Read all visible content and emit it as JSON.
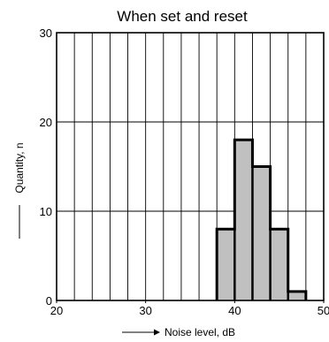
{
  "chart_data": {
    "type": "bar",
    "title": "When set and reset",
    "xlabel": "Noise level, dB",
    "ylabel": "Quantity, n",
    "xlim": [
      20,
      50
    ],
    "ylim": [
      0,
      30
    ],
    "xticks": [
      20,
      30,
      40,
      50
    ],
    "yticks": [
      0,
      10,
      20,
      30
    ],
    "x_minor_step": 2,
    "grid": true,
    "bins": [
      {
        "x0": 38,
        "x1": 40,
        "count": 8
      },
      {
        "x0": 40,
        "x1": 42,
        "count": 18
      },
      {
        "x0": 42,
        "x1": 44,
        "count": 15
      },
      {
        "x0": 44,
        "x1": 46,
        "count": 8
      },
      {
        "x0": 46,
        "x1": 48,
        "count": 1
      }
    ],
    "colors": {
      "bar_fill": "#c0c0c0",
      "bar_stroke": "#000000",
      "grid": "#000000"
    }
  }
}
